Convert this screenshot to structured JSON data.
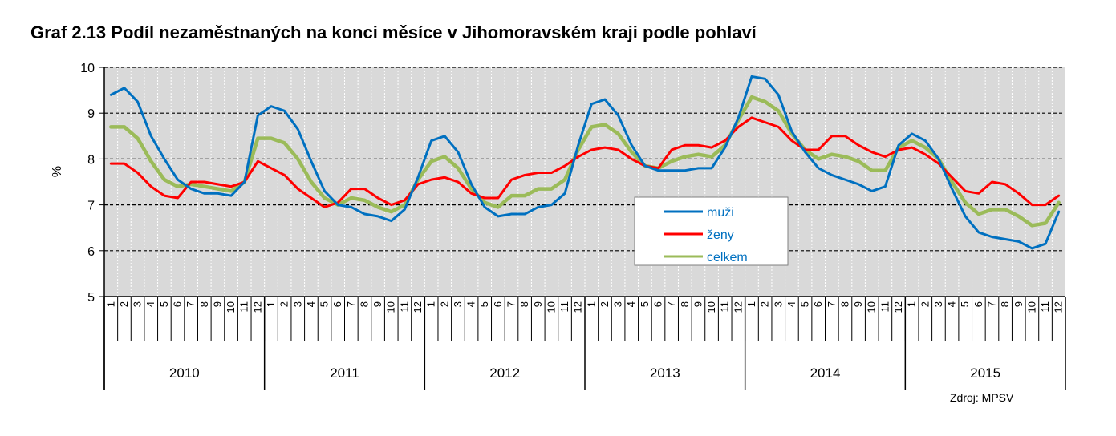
{
  "title": "Graf 2.13 Podíl nezaměstnaných na konci měsíce v Jihomoravském kraji podle pohlaví",
  "source": "Zdroj: MPSV",
  "chart_data": {
    "type": "line",
    "title": "Graf 2.13 Podíl nezaměstnaných na konci měsíce v Jihomoravském kraji podle pohlaví",
    "ylabel": "%",
    "xlabel": "",
    "ylim": [
      5,
      10
    ],
    "yticks": [
      5,
      6,
      7,
      8,
      9,
      10
    ],
    "grid": "horizontal dashed, vertical dotted",
    "legend": "center-right",
    "months": [
      "1",
      "2",
      "3",
      "4",
      "5",
      "6",
      "7",
      "8",
      "9",
      "10",
      "11",
      "12"
    ],
    "years": [
      "2010",
      "2011",
      "2012",
      "2013",
      "2014",
      "2015"
    ],
    "series": [
      {
        "name": "muži",
        "color": "#0070c0",
        "values": [
          9.4,
          9.55,
          9.25,
          8.5,
          8.0,
          7.55,
          7.35,
          7.25,
          7.25,
          7.2,
          7.5,
          8.95,
          9.15,
          9.05,
          8.65,
          7.95,
          7.3,
          7.0,
          6.95,
          6.8,
          6.75,
          6.65,
          6.9,
          7.6,
          8.4,
          8.5,
          8.15,
          7.45,
          6.95,
          6.75,
          6.8,
          6.8,
          6.95,
          7.0,
          7.25,
          8.3,
          9.2,
          9.3,
          8.95,
          8.3,
          7.85,
          7.75,
          7.75,
          7.75,
          7.8,
          7.8,
          8.25,
          8.9,
          9.8,
          9.75,
          9.4,
          8.6,
          8.15,
          7.8,
          7.65,
          7.55,
          7.45,
          7.3,
          7.4,
          8.3,
          8.55,
          8.4,
          8.0,
          7.35,
          6.75,
          6.4,
          6.3,
          6.25,
          6.2,
          6.05,
          6.15,
          6.85
        ]
      },
      {
        "name": "ženy",
        "color": "#ff0000",
        "values": [
          7.9,
          7.9,
          7.7,
          7.4,
          7.2,
          7.15,
          7.5,
          7.5,
          7.45,
          7.4,
          7.5,
          7.95,
          7.8,
          7.65,
          7.35,
          7.15,
          6.95,
          7.05,
          7.35,
          7.35,
          7.15,
          7.0,
          7.1,
          7.45,
          7.55,
          7.6,
          7.5,
          7.25,
          7.15,
          7.15,
          7.55,
          7.65,
          7.7,
          7.7,
          7.85,
          8.05,
          8.2,
          8.25,
          8.2,
          8.0,
          7.85,
          7.8,
          8.2,
          8.3,
          8.3,
          8.25,
          8.4,
          8.7,
          8.9,
          8.8,
          8.7,
          8.4,
          8.2,
          8.2,
          8.5,
          8.5,
          8.3,
          8.15,
          8.05,
          8.2,
          8.25,
          8.1,
          7.9,
          7.6,
          7.3,
          7.25,
          7.5,
          7.45,
          7.25,
          7.0,
          7.0,
          7.2
        ]
      },
      {
        "name": "celkem",
        "color": "#9bbb59",
        "values": [
          8.7,
          8.7,
          8.45,
          7.95,
          7.55,
          7.4,
          7.45,
          7.4,
          7.35,
          7.3,
          7.5,
          8.45,
          8.45,
          8.35,
          8.0,
          7.5,
          7.15,
          7.0,
          7.15,
          7.1,
          6.95,
          6.85,
          7.0,
          7.55,
          7.95,
          8.05,
          7.8,
          7.35,
          7.05,
          6.95,
          7.2,
          7.2,
          7.35,
          7.35,
          7.55,
          8.2,
          8.7,
          8.75,
          8.55,
          8.15,
          7.85,
          7.8,
          7.95,
          8.05,
          8.1,
          8.05,
          8.3,
          8.85,
          9.35,
          9.25,
          9.05,
          8.55,
          8.2,
          8.0,
          8.1,
          8.05,
          7.95,
          7.75,
          7.75,
          8.25,
          8.4,
          8.25,
          8.0,
          7.5,
          7.05,
          6.8,
          6.9,
          6.9,
          6.75,
          6.55,
          6.6,
          7.05
        ]
      }
    ]
  }
}
